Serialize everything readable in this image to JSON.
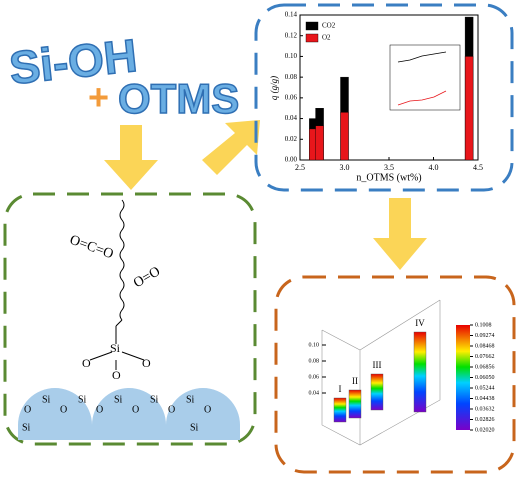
{
  "header": {
    "reactant": "Si-OH",
    "plus": "+",
    "modifier": "OTMS"
  },
  "molecule": {
    "co2": "O=C=O",
    "o2": "O=O",
    "si": "Si",
    "methoxy_left": "O",
    "methoxy_right": "O",
    "link": "O",
    "surface": [
      "O",
      "Si",
      "O",
      "Si",
      "O",
      "Si",
      "O",
      "Si",
      "O",
      "Si",
      "O",
      "Si",
      "Si"
    ]
  },
  "chart_data": {
    "type": "bar",
    "ylabel": "q (g/g)",
    "xlabel": "n_OTMS (wt%)",
    "x": [
      2.65,
      2.72,
      3.0,
      4.4
    ],
    "series": [
      {
        "name": "CO2",
        "color": "#000000",
        "values": [
          0.04,
          0.05,
          0.08,
          0.138
        ]
      },
      {
        "name": "O2",
        "color": "#e8161b",
        "values": [
          0.03,
          0.033,
          0.046,
          0.1
        ]
      }
    ],
    "xlim": [
      2.5,
      4.5
    ],
    "xticks": [
      2.5,
      {
        "value": 3.0,
        "label": "3.0"
      },
      3.5,
      {
        "value": 4.0,
        "label": "4.0"
      },
      4.5
    ],
    "ylim": [
      0,
      0.14
    ],
    "yticks": [
      {
        "value": 0,
        "label": "0.00"
      },
      0.02,
      0.04,
      0.06,
      0.08,
      {
        "value": 0.1,
        "label": "0.10"
      },
      0.12,
      0.14
    ],
    "legend": "upper-left"
  },
  "chart3d": {
    "bars": [
      "I",
      "II",
      "III",
      "IV"
    ],
    "values": [
      0.03,
      0.035,
      0.045,
      0.1
    ],
    "zticks": [
      0.04,
      0.06,
      0.08,
      {
        "value": 0.1,
        "label": "0.10"
      }
    ],
    "colorbar": [
      0.1008,
      0.09274,
      0.08468,
      0.07662,
      0.06856,
      {
        "value": 0.0605,
        "label": "0.06050"
      },
      0.05244,
      0.04438,
      0.03632,
      0.02826,
      {
        "value": 0.0202,
        "label": "0.02020"
      }
    ]
  }
}
